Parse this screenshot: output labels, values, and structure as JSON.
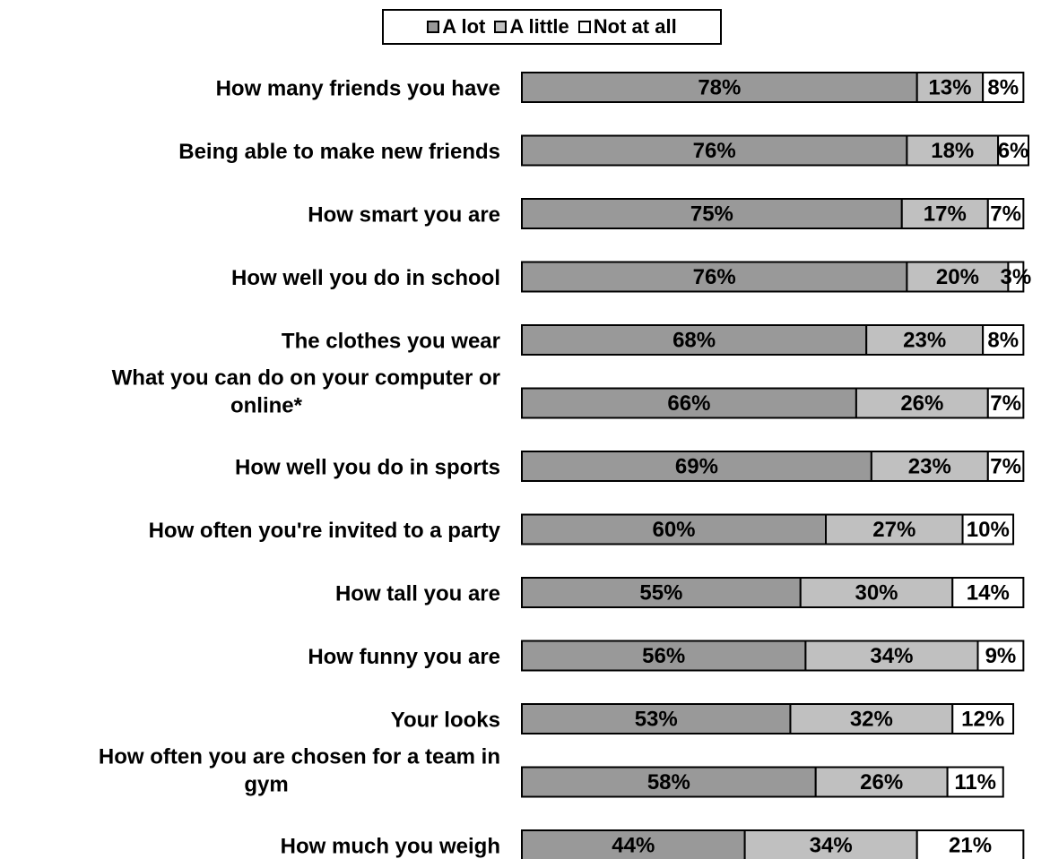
{
  "colors": {
    "a_lot": "#999999",
    "a_little": "#c0c0c0",
    "not_at_all": "#ffffff",
    "border": "#000000"
  },
  "chart_data": {
    "type": "bar",
    "orientation": "horizontal",
    "stacked": true,
    "legend_position": "top",
    "legend": [
      "A lot",
      "A little",
      "Not at all"
    ],
    "categories": [
      [
        "How many friends you have"
      ],
      [
        "Being able to make new friends"
      ],
      [
        "How smart you are"
      ],
      [
        "How well you do in school"
      ],
      [
        "The clothes you wear"
      ],
      [
        "What you can do on your computer or",
        "online*"
      ],
      [
        "How well you do in sports"
      ],
      [
        "How often you're invited to a party"
      ],
      [
        "How tall you are"
      ],
      [
        "How funny you are"
      ],
      [
        "Your looks"
      ],
      [
        "How often you are chosen for a team in",
        "gym"
      ],
      [
        "How much you weigh"
      ]
    ],
    "series": [
      {
        "name": "A lot",
        "values": [
          78,
          76,
          75,
          76,
          68,
          66,
          69,
          60,
          55,
          56,
          53,
          58,
          44
        ]
      },
      {
        "name": "A little",
        "values": [
          13,
          18,
          17,
          20,
          23,
          26,
          23,
          27,
          30,
          34,
          32,
          26,
          34
        ]
      },
      {
        "name": "Not at all",
        "values": [
          8,
          6,
          7,
          3,
          8,
          7,
          7,
          10,
          14,
          9,
          12,
          11,
          21
        ]
      }
    ],
    "value_suffix": "%",
    "xlim": [
      0,
      100
    ]
  }
}
